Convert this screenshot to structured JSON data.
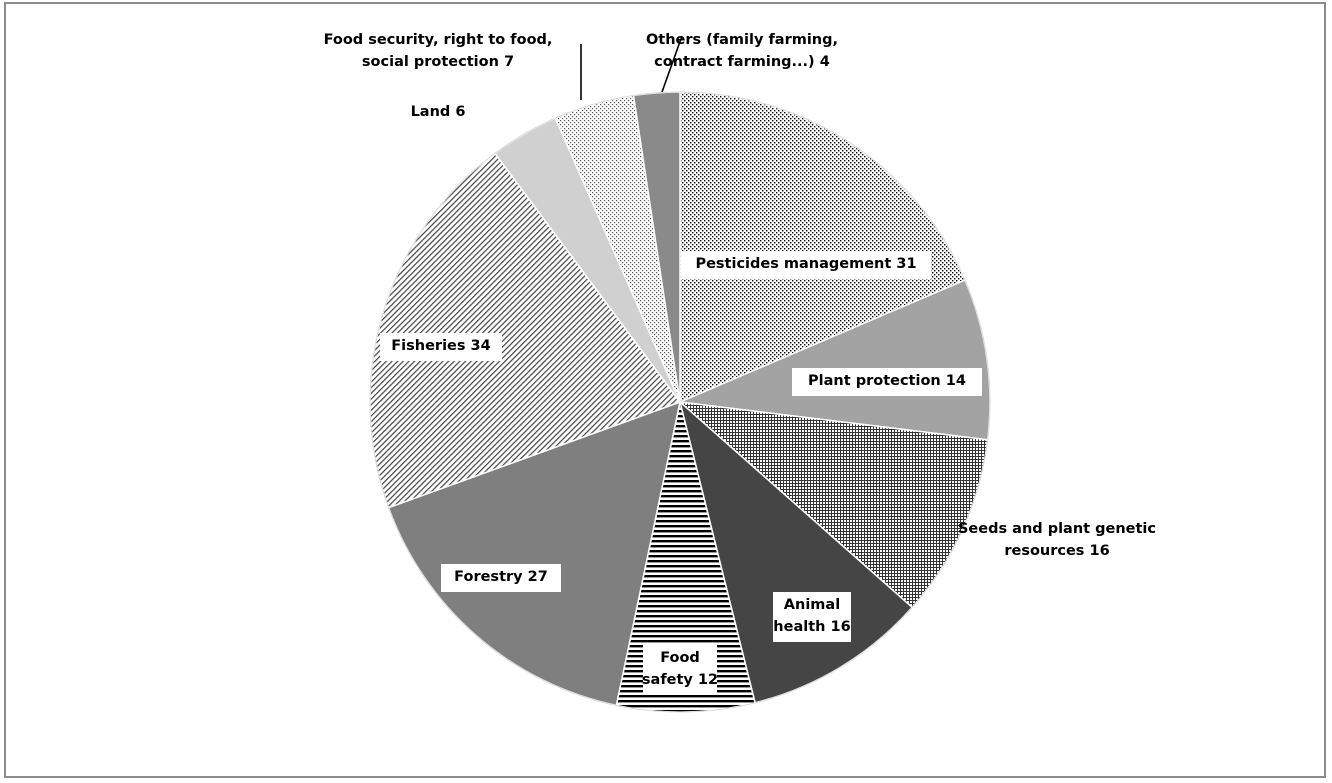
{
  "chart_data": {
    "type": "pie",
    "title": "",
    "start_angle_deg": 0,
    "direction": "clockwise",
    "legend": "none",
    "slices": [
      {
        "label_lines": [
          "Pesticides management 31"
        ],
        "category": "Pesticides management",
        "value": 31,
        "fill": "dots-dense",
        "color": "#ffffff",
        "label_box": true
      },
      {
        "label_lines": [
          "Plant protection 14"
        ],
        "category": "Plant protection",
        "value": 14,
        "fill": "solid",
        "color": "#a3a3a3",
        "label_box": true
      },
      {
        "label_lines": [
          "Seeds and plant genetic",
          "resources 16"
        ],
        "category": "Seeds and plant genetic resources",
        "value": 16,
        "fill": "crosshatch",
        "color": "#ffffff",
        "label_box": false
      },
      {
        "label_lines": [
          "Animal",
          "health 16"
        ],
        "category": "Animal health",
        "value": 16,
        "fill": "solid",
        "color": "#454545",
        "label_box": true
      },
      {
        "label_lines": [
          "Food",
          "safety 12"
        ],
        "category": "Food safety",
        "value": 12,
        "fill": "horizontal-stripes",
        "color": "#ffffff",
        "label_box": true
      },
      {
        "label_lines": [
          "Forestry 27"
        ],
        "category": "Forestry",
        "value": 27,
        "fill": "solid",
        "color": "#7f7f7f",
        "label_box": true
      },
      {
        "label_lines": [
          "Fisheries 34"
        ],
        "category": "Fisheries",
        "value": 34,
        "fill": "diagonal-stripes",
        "color": "#ffffff",
        "label_box": true
      },
      {
        "label_lines": [
          "Land 6"
        ],
        "category": "Land",
        "value": 6,
        "fill": "solid",
        "color": "#d0d0d0",
        "label_box": false
      },
      {
        "label_lines": [
          "Food security, right to food,",
          "social protection 7"
        ],
        "category": "Food security, right to food, social protection",
        "value": 7,
        "fill": "dots-sparse",
        "color": "#ffffff",
        "label_box": false,
        "leader_line": true
      },
      {
        "label_lines": [
          "Others (family farming,",
          "contract farming...) 4"
        ],
        "category": "Others (family farming, contract farming...)",
        "value": 4,
        "fill": "solid",
        "color": "#8a8a8a",
        "label_box": false,
        "leader_line": true
      }
    ]
  }
}
